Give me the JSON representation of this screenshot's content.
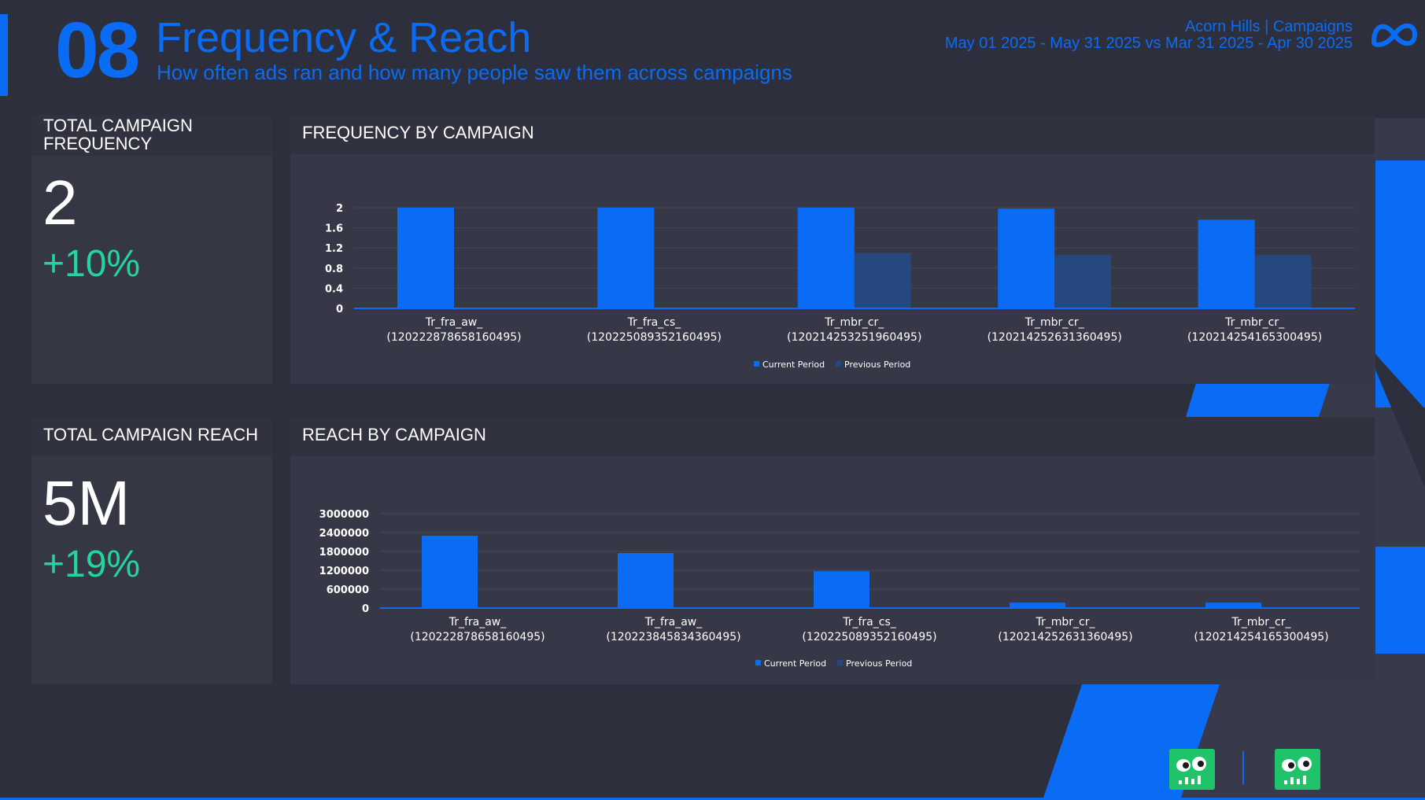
{
  "header": {
    "page_number": "08",
    "title": "Frequency & Reach",
    "subtitle": "How often ads ran and how many people saw them across campaigns",
    "client": "Acorn Hills | Campaigns",
    "period": "May 01 2025 - May 31 2025 vs Mar 31 2025 - Apr 30 2025",
    "logo_icon": "meta-infinity-logo-icon"
  },
  "colors": {
    "accent": "#0a6cf5",
    "positive": "#25d39c",
    "current_period": "#0a6cf5",
    "previous_period": "#24487f",
    "background": "#2e2f3c"
  },
  "kpis": {
    "frequency": {
      "label": "TOTAL CAMPAIGN FREQUENCY",
      "value": "2",
      "delta": "+10%"
    },
    "reach": {
      "label": "TOTAL CAMPAIGN REACH",
      "value": "5M",
      "delta": "+19%"
    }
  },
  "chart_data": [
    {
      "id": "frequency",
      "type": "bar",
      "title": "FREQUENCY BY CAMPAIGN",
      "categories": [
        [
          "Tr_fra_aw_",
          "(120222878658160495)"
        ],
        [
          "Tr_fra_cs_",
          "(120225089352160495)"
        ],
        [
          "Tr_mbr_cr_",
          "(120214253251960495)"
        ],
        [
          "Tr_mbr_cr_",
          "(120214252631360495)"
        ],
        [
          "Tr_mbr_cr_",
          "(120214254165300495)"
        ]
      ],
      "series": [
        {
          "name": "Current Period",
          "values": [
            2.0,
            2.0,
            2.0,
            1.98,
            1.76
          ]
        },
        {
          "name": "Previous Period",
          "values": [
            0,
            0,
            1.1,
            1.06,
            1.06
          ]
        }
      ],
      "yticks": [
        "0",
        "0.4",
        "0.8",
        "1.2",
        "1.6",
        "2"
      ],
      "ylim": [
        0,
        2
      ],
      "grid": true,
      "legend": "bottom"
    },
    {
      "id": "reach",
      "type": "bar",
      "title": "REACH BY CAMPAIGN",
      "categories": [
        [
          "Tr_fra_aw_",
          "(120222878658160495)"
        ],
        [
          "Tr_fra_aw_",
          "(120223845834360495)"
        ],
        [
          "Tr_fra_cs_",
          "(120225089352160495)"
        ],
        [
          "Tr_mbr_cr_",
          "(120214252631360495)"
        ],
        [
          "Tr_mbr_cr_",
          "(120214254165300495)"
        ]
      ],
      "series": [
        {
          "name": "Current Period",
          "values": [
            2300000,
            1750000,
            1170000,
            170000,
            170000
          ]
        },
        {
          "name": "Previous Period",
          "values": [
            0,
            0,
            0,
            30000,
            30000
          ]
        }
      ],
      "yticks": [
        "0",
        "600000",
        "1200000",
        "1800000",
        "2400000",
        "3000000"
      ],
      "ylim": [
        0,
        3000000
      ],
      "grid": true,
      "legend": "bottom"
    }
  ],
  "footer": {
    "mascot_icons": [
      "mascot-logo-icon",
      "mascot-logo-icon"
    ]
  }
}
